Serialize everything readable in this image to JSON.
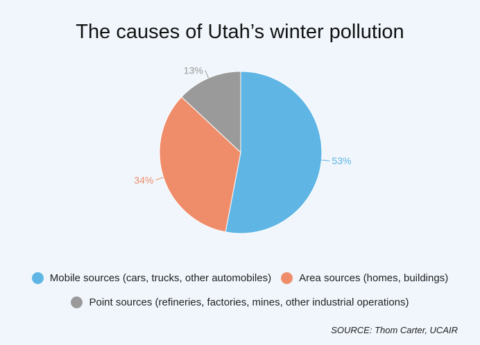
{
  "chart_data": {
    "type": "pie",
    "title": "The causes of Utah’s winter pollution",
    "slices": [
      {
        "label": "Mobile sources (cars, trucks, other automobiles)",
        "value": 53,
        "display": "53%",
        "color": "#5fb6e5"
      },
      {
        "label": "Area sources (homes, buildings)",
        "value": 34,
        "display": "34%",
        "color": "#ef8d6b"
      },
      {
        "label": "Point sources (refineries, factories, mines, other industrial operations)",
        "value": 13,
        "display": "13%",
        "color": "#9a9a9a"
      }
    ],
    "legend_placement": "bottom"
  },
  "source": "SOURCE: Thom Carter, UCAIR"
}
